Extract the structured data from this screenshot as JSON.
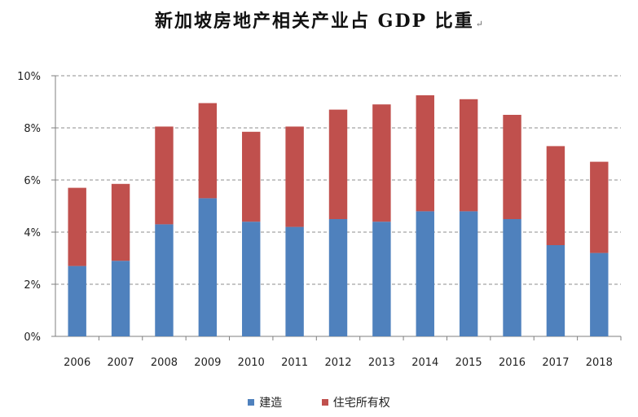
{
  "title": "新加坡房地产相关产业占 GDP 比重",
  "title_mark": "↵",
  "chart_data": {
    "type": "bar",
    "stacked": true,
    "title": "新加坡房地产相关产业占 GDP 比重",
    "categories": [
      "2006",
      "2007",
      "2008",
      "2009",
      "2010",
      "2011",
      "2012",
      "2013",
      "2014",
      "2015",
      "2016",
      "2017",
      "2018"
    ],
    "series": [
      {
        "name": "建造",
        "color": "#4f81bd",
        "values": [
          2.7,
          2.9,
          4.3,
          5.3,
          4.4,
          4.2,
          4.5,
          4.4,
          4.8,
          4.8,
          4.5,
          3.5,
          3.2
        ]
      },
      {
        "name": "住宅所有权",
        "color": "#c0504d",
        "values": [
          3.0,
          2.95,
          3.75,
          3.65,
          3.45,
          3.85,
          4.2,
          4.5,
          4.45,
          4.3,
          4.0,
          3.8,
          3.5
        ]
      }
    ],
    "y_ticks": [
      0,
      2,
      4,
      6,
      8,
      10
    ],
    "y_tick_labels": [
      "0%",
      "2%",
      "4%",
      "6%",
      "8%",
      "10%"
    ],
    "ylim": [
      0,
      10
    ],
    "xlabel": "",
    "ylabel": "",
    "grid": true,
    "legend_position": "bottom"
  }
}
